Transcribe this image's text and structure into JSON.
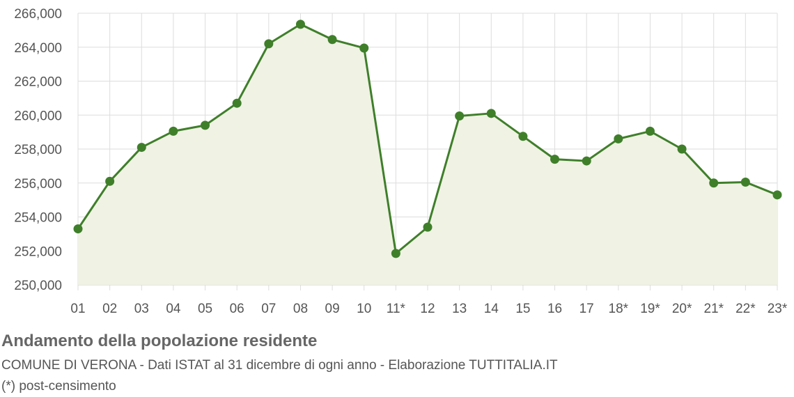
{
  "chart_data": {
    "type": "area",
    "title": "Andamento della popolazione residente",
    "subtitle": "COMUNE DI VERONA - Dati ISTAT al 31 dicembre di ogni anno - Elaborazione TUTTITALIA.IT",
    "note": "(*) post-censimento",
    "categories": [
      "01",
      "02",
      "03",
      "04",
      "05",
      "06",
      "07",
      "08",
      "09",
      "10",
      "11*",
      "12",
      "13",
      "14",
      "15",
      "16",
      "17",
      "18*",
      "19*",
      "20*",
      "21*",
      "22*",
      "23*"
    ],
    "values": [
      253300,
      256100,
      258100,
      259050,
      259400,
      260700,
      264200,
      265350,
      264450,
      263950,
      251850,
      253400,
      259950,
      260100,
      258750,
      257400,
      257300,
      258600,
      259050,
      258000,
      256000,
      256050,
      255300
    ],
    "ylim": [
      250000,
      266000
    ],
    "yticks": [
      250000,
      252000,
      254000,
      256000,
      258000,
      260000,
      262000,
      264000,
      266000
    ],
    "ytick_labels": [
      "250,000",
      "252,000",
      "254,000",
      "256,000",
      "258,000",
      "260,000",
      "262,000",
      "264,000",
      "266,000"
    ],
    "grid": true,
    "colors": {
      "line": "#3f7f2a",
      "fill": "#f0f2e4",
      "grid": "#dddddd",
      "axis": "#cccccc"
    }
  }
}
